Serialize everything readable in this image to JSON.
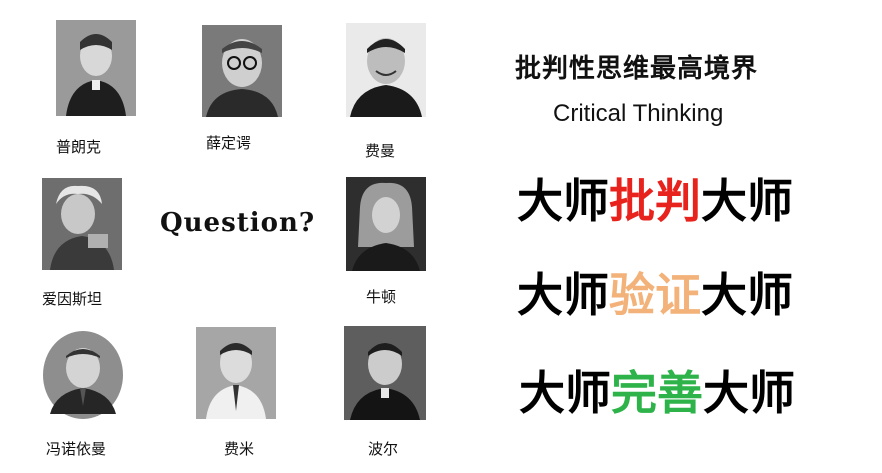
{
  "people": [
    {
      "name": "普朗克"
    },
    {
      "name": "薛定谔"
    },
    {
      "name": "费曼"
    },
    {
      "name": "爱因斯坦"
    },
    {
      "name": "牛顿"
    },
    {
      "name": "冯诺依曼"
    },
    {
      "name": "费米"
    },
    {
      "name": "波尔"
    }
  ],
  "question_text": "Question?",
  "title_cn": "批判性思维最高境界",
  "title_en": "Critical Thinking",
  "slogans": [
    {
      "prefix": "大师",
      "highlight": "批判",
      "suffix": "大师",
      "color": "#e8221d"
    },
    {
      "prefix": "大师",
      "highlight": "验证",
      "suffix": "大师",
      "color": "#f2b27a"
    },
    {
      "prefix": "大师",
      "highlight": "完善",
      "suffix": "大师",
      "color": "#2db34a"
    }
  ]
}
